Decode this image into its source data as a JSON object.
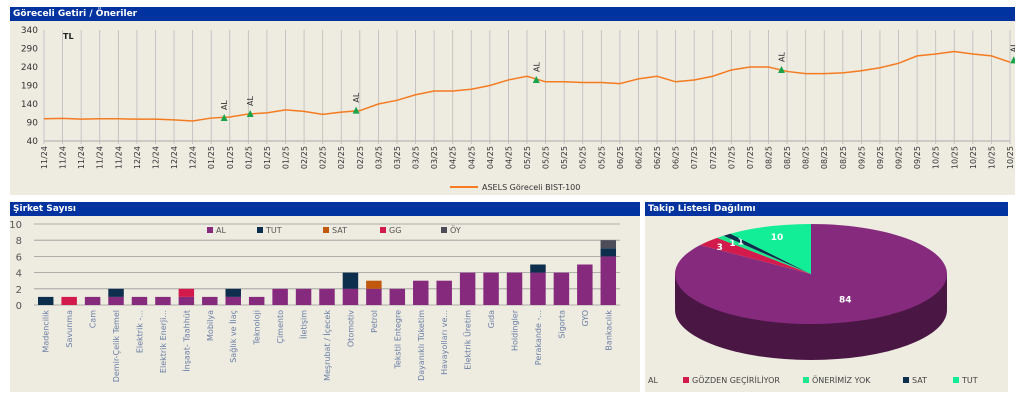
{
  "panels": {
    "top_title": "Göreceli Getiri / Öneriler",
    "bars_title": "Şirket Sayısı",
    "pie_title": "Takip Listesi Dağılımı"
  },
  "chart_data": [
    {
      "type": "line",
      "unit_label": "TL",
      "ylim": [
        40,
        340
      ],
      "yticks": [
        40,
        90,
        140,
        190,
        240,
        290,
        340
      ],
      "grid": "vertical",
      "categories": [
        "11/24",
        "11/24",
        "11/24",
        "11/24",
        "11/24",
        "12/24",
        "12/24",
        "12/24",
        "12/24",
        "01/25",
        "01/25",
        "01/25",
        "01/25",
        "01/25",
        "02/25",
        "02/25",
        "02/25",
        "02/25",
        "03/25",
        "03/25",
        "03/25",
        "03/25",
        "04/25",
        "04/25",
        "04/25",
        "04/25",
        "05/25",
        "05/25",
        "05/25",
        "05/25",
        "05/25",
        "06/25",
        "06/25",
        "06/25",
        "06/25",
        "07/25",
        "07/25",
        "07/25",
        "07/25",
        "08/25",
        "08/25",
        "08/25",
        "08/25",
        "08/25",
        "09/25",
        "09/25",
        "09/25",
        "09/25",
        "10/25",
        "10/25",
        "10/25",
        "10/25",
        "10/25"
      ],
      "series": [
        {
          "name": "ASELS Göreceli BIST-100",
          "color": "#f47b20",
          "values": [
            100,
            101,
            99,
            100,
            100,
            99,
            99,
            97,
            94,
            102,
            105,
            113,
            116,
            124,
            120,
            112,
            118,
            122,
            140,
            150,
            165,
            175,
            175,
            180,
            190,
            205,
            215,
            200,
            200,
            198,
            198,
            195,
            208,
            215,
            200,
            205,
            215,
            232,
            240,
            240,
            228,
            222,
            222,
            224,
            230,
            238,
            250,
            270,
            275,
            282,
            275,
            270,
            253
          ]
        }
      ],
      "markers": [
        {
          "label": "AL",
          "tick": 9.7,
          "value": 102
        },
        {
          "label": "AL",
          "tick": 11.1,
          "value": 113
        },
        {
          "label": "AL",
          "tick": 16.8,
          "value": 122
        },
        {
          "label": "AL",
          "tick": 26.5,
          "value": 205
        },
        {
          "label": "AL",
          "tick": 39.7,
          "value": 232
        },
        {
          "label": "AL",
          "tick": 52.2,
          "value": 258
        }
      ],
      "legend": "bottom",
      "marker_color": "#1aa34a"
    },
    {
      "type": "bar",
      "stacked": true,
      "ylim": [
        0,
        10
      ],
      "yticks": [
        0,
        2,
        4,
        6,
        8,
        10
      ],
      "legend": "top",
      "categories": [
        "Madencilik",
        "Savunma",
        "Cam",
        "Demir-Çelik Temel",
        "Elektrik -...",
        "Elektrik Enerji...",
        "İnşaat- Taahhüt",
        "Mobilya",
        "Sağlık ve İlaç",
        "Teknoloji",
        "Çimento",
        "İletişim",
        "Meşrubat / İçecek",
        "Otomotiv",
        "Petrol",
        "Tekstil Entegre",
        "Dayanıklı Tüketim",
        "Havayolları ve...",
        "Elektrik Üretim",
        "Gıda",
        "Holdingler",
        "Perakande -...",
        "Sigorta",
        "GYO",
        "Bankacılık"
      ],
      "series": [
        {
          "name": "AL",
          "color": "#862a7e",
          "values": [
            0,
            0,
            1,
            1,
            1,
            1,
            1,
            1,
            1,
            1,
            2,
            2,
            2,
            2,
            2,
            2,
            3,
            3,
            4,
            4,
            4,
            4,
            4,
            5,
            6
          ]
        },
        {
          "name": "TUT",
          "color": "#0d2e4c",
          "values": [
            1,
            0,
            0,
            1,
            0,
            0,
            0,
            0,
            1,
            0,
            0,
            0,
            0,
            2,
            0,
            0,
            0,
            0,
            0,
            0,
            0,
            1,
            0,
            0,
            1
          ]
        },
        {
          "name": "SAT",
          "color": "#c0580d",
          "values": [
            0,
            0,
            0,
            0,
            0,
            0,
            0,
            0,
            0,
            0,
            0,
            0,
            0,
            0,
            1,
            0,
            0,
            0,
            0,
            0,
            0,
            0,
            0,
            0,
            0
          ]
        },
        {
          "name": "GG",
          "color": "#d21b4c",
          "values": [
            0,
            1,
            0,
            0,
            0,
            0,
            1,
            0,
            0,
            0,
            0,
            0,
            0,
            0,
            0,
            0,
            0,
            0,
            0,
            0,
            0,
            0,
            0,
            0,
            0
          ]
        },
        {
          "name": "ÖY",
          "color": "#4d4d5a",
          "values": [
            0,
            0,
            0,
            0,
            0,
            0,
            0,
            0,
            0,
            0,
            0,
            0,
            0,
            0,
            0,
            0,
            0,
            0,
            0,
            0,
            0,
            0,
            0,
            0,
            1
          ]
        }
      ]
    },
    {
      "type": "pie",
      "style": "3d",
      "legend": "bottom",
      "slices": [
        {
          "name": "AL",
          "value": 84,
          "color": "#862a7e"
        },
        {
          "name": "GÖZDEN GEÇİRİLİYOR",
          "value": 3,
          "color": "#d21b4c"
        },
        {
          "name": "ÖNERİMİZ YOK",
          "value": 1,
          "color": "#1ee68e"
        },
        {
          "name": "SAT",
          "value": 1,
          "color": "#0d2e4c"
        },
        {
          "name": "TUT",
          "value": 10,
          "color": "#12ee98"
        }
      ]
    }
  ]
}
